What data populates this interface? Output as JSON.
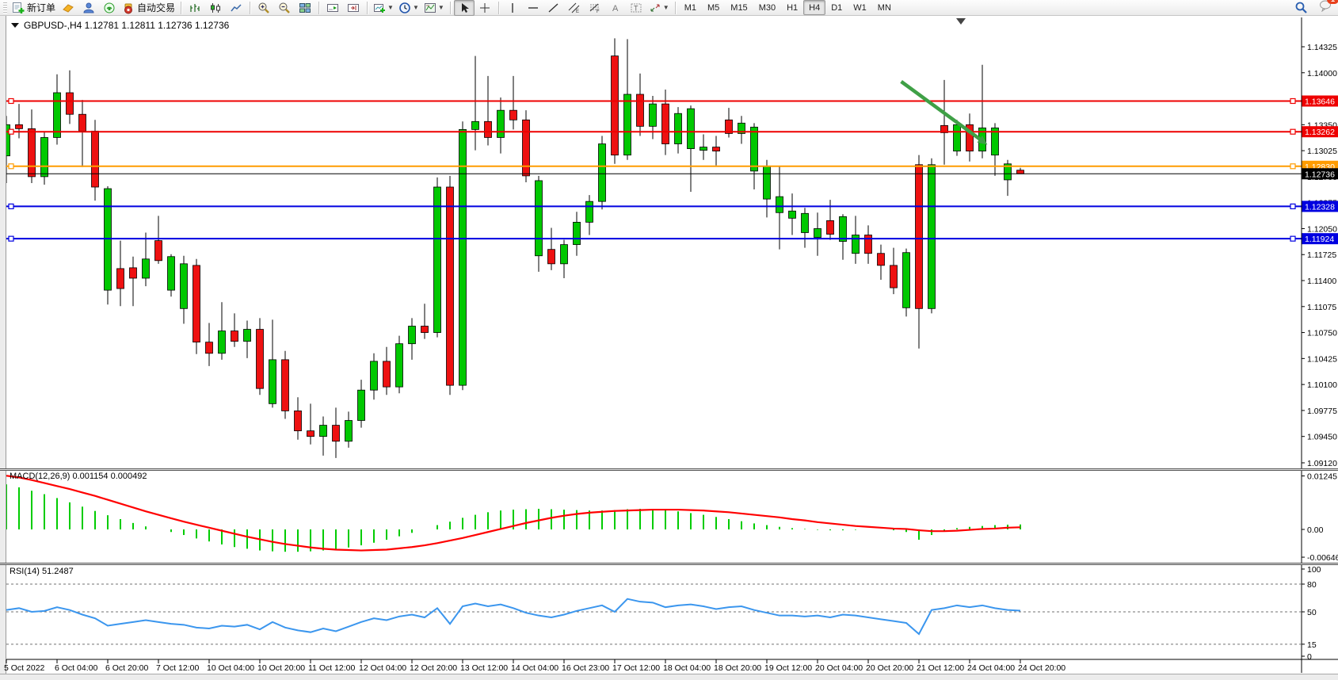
{
  "app": {
    "toolbar": {
      "new_order_label": "新订单",
      "autotrading_label": "自动交易",
      "timeframes": [
        "M1",
        "M5",
        "M15",
        "M30",
        "H1",
        "H4",
        "D1",
        "W1",
        "MN"
      ],
      "active_timeframe": "H4",
      "notifications_badge": "1"
    },
    "status_bar_text": ""
  },
  "chart": {
    "title": {
      "symbol": "GBPUSD-,H4",
      "open": "1.12781",
      "high": "1.12811",
      "low": "1.12736",
      "close": "1.12736"
    },
    "indicator_labels": {
      "macd": "MACD(12,26,9) 0.001154 0.000492",
      "rsi": "RSI(14) 51.2487"
    }
  },
  "chart_data": {
    "type": "candlestick",
    "symbol": "GBPUSD-",
    "timeframe": "H4",
    "style": {
      "bull_color": "#00c800",
      "bear_color": "#ee1111",
      "wick_color": "#000000",
      "macd_hist_color": "#00cc00",
      "macd_signal_color": "#ff0000",
      "rsi_line_color": "#3b96ee"
    },
    "x_labels": [
      "5 Oct 2022",
      "6 Oct 04:00",
      "6 Oct 20:00",
      "7 Oct 12:00",
      "10 Oct 04:00",
      "10 Oct 20:00",
      "11 Oct 12:00",
      "12 Oct 04:00",
      "12 Oct 20:00",
      "13 Oct 12:00",
      "14 Oct 04:00",
      "16 Oct 23:00",
      "17 Oct 12:00",
      "18 Oct 04:00",
      "18 Oct 20:00",
      "19 Oct 12:00",
      "20 Oct 04:00",
      "20 Oct 20:00",
      "21 Oct 12:00",
      "24 Oct 04:00",
      "24 Oct 20:00"
    ],
    "label_every_n_candles": 4,
    "price_axis_ticks": [
      1.14325,
      1.14,
      1.13675,
      1.1335,
      1.13025,
      1.127,
      1.12375,
      1.1205,
      1.11725,
      1.114,
      1.11075,
      1.1075,
      1.10425,
      1.101,
      1.09775,
      1.0945,
      1.0912
    ],
    "hlines": [
      {
        "price": 1.13646,
        "color": "#ee0000",
        "width": 2,
        "markers": true
      },
      {
        "price": 1.13262,
        "color": "#ee0000",
        "width": 2,
        "markers": true
      },
      {
        "price": 1.1283,
        "color": "#ff9c00",
        "width": 2,
        "markers": true
      },
      {
        "price": 1.12736,
        "color": "#000000",
        "width": 1,
        "markers": false
      },
      {
        "price": 1.12328,
        "color": "#0000e0",
        "width": 2,
        "markers": true
      },
      {
        "price": 1.11924,
        "color": "#0000e0",
        "width": 2,
        "markers": true
      }
    ],
    "price_tags": [
      {
        "price": 1.13646,
        "bg": "#ee0000"
      },
      {
        "price": 1.13262,
        "bg": "#ee0000"
      },
      {
        "price": 1.1283,
        "bg": "#ff9c00"
      },
      {
        "price": 1.12736,
        "bg": "#000000"
      },
      {
        "price": 1.12328,
        "bg": "#0000e0"
      },
      {
        "price": 1.11924,
        "bg": "#0000e0"
      }
    ],
    "current_price": "1.12736",
    "candles": [
      [
        1.1296,
        1.1346,
        1.1262,
        1.1335
      ],
      [
        1.1335,
        1.1361,
        1.1318,
        1.133
      ],
      [
        1.133,
        1.1354,
        1.1262,
        1.127
      ],
      [
        1.127,
        1.1326,
        1.126,
        1.1319
      ],
      [
        1.1319,
        1.1398,
        1.131,
        1.1375
      ],
      [
        1.1375,
        1.1403,
        1.1336,
        1.1348
      ],
      [
        1.1348,
        1.1366,
        1.1282,
        1.1327
      ],
      [
        1.1327,
        1.1341,
        1.124,
        1.1257
      ],
      [
        1.1128,
        1.1258,
        1.111,
        1.1255
      ],
      [
        1.1155,
        1.119,
        1.1108,
        1.113
      ],
      [
        1.1156,
        1.117,
        1.1108,
        1.1143
      ],
      [
        1.1143,
        1.12,
        1.1133,
        1.1167
      ],
      [
        1.119,
        1.1221,
        1.1161,
        1.1165
      ],
      [
        1.1128,
        1.1173,
        1.112,
        1.117
      ],
      [
        1.1105,
        1.1171,
        1.1086,
        1.1161
      ],
      [
        1.1159,
        1.1167,
        1.1048,
        1.1063
      ],
      [
        1.1063,
        1.1087,
        1.1033,
        1.1049
      ],
      [
        1.1049,
        1.1113,
        1.1041,
        1.1077
      ],
      [
        1.1077,
        1.1099,
        1.1057,
        1.1064
      ],
      [
        1.1064,
        1.109,
        1.1043,
        1.1079
      ],
      [
        1.1079,
        1.1093,
        1.0997,
        1.1005
      ],
      [
        1.0986,
        1.1091,
        1.0981,
        1.1041
      ],
      [
        1.1041,
        1.1052,
        1.0967,
        1.0977
      ],
      [
        1.0977,
        1.0994,
        1.0941,
        1.0952
      ],
      [
        1.0952,
        1.0986,
        1.0935,
        1.0945
      ],
      [
        1.0945,
        1.097,
        1.0921,
        1.0959
      ],
      [
        1.0959,
        1.0981,
        1.0918,
        1.0939
      ],
      [
        1.0939,
        1.0976,
        1.0931,
        1.0965
      ],
      [
        1.0965,
        1.1016,
        1.0956,
        1.1003
      ],
      [
        1.1003,
        1.1049,
        1.0991,
        1.1039
      ],
      [
        1.1039,
        1.1057,
        1.0997,
        1.1007
      ],
      [
        1.1007,
        1.1071,
        1.0999,
        1.1061
      ],
      [
        1.1061,
        1.1093,
        1.1041,
        1.1083
      ],
      [
        1.1083,
        1.1111,
        1.1067,
        1.1075
      ],
      [
        1.1075,
        1.1269,
        1.1069,
        1.1257
      ],
      [
        1.1257,
        1.1271,
        1.0997,
        1.1009
      ],
      [
        1.1009,
        1.1339,
        1.1003,
        1.1329
      ],
      [
        1.1329,
        1.1421,
        1.1303,
        1.1339
      ],
      [
        1.1339,
        1.1396,
        1.1309,
        1.1319
      ],
      [
        1.1319,
        1.1369,
        1.1299,
        1.1353
      ],
      [
        1.1353,
        1.1396,
        1.1329,
        1.1341
      ],
      [
        1.1341,
        1.1353,
        1.1263,
        1.1271
      ],
      [
        1.1171,
        1.1271,
        1.1151,
        1.1265
      ],
      [
        1.1179,
        1.1206,
        1.1153,
        1.1161
      ],
      [
        1.1161,
        1.1191,
        1.1143,
        1.1185
      ],
      [
        1.1185,
        1.1226,
        1.1171,
        1.1213
      ],
      [
        1.1213,
        1.1247,
        1.1197,
        1.1239
      ],
      [
        1.1239,
        1.1321,
        1.1229,
        1.1311
      ],
      [
        1.1421,
        1.1443,
        1.1286,
        1.1297
      ],
      [
        1.1297,
        1.1442,
        1.1291,
        1.1373
      ],
      [
        1.1373,
        1.1399,
        1.1321,
        1.1333
      ],
      [
        1.1333,
        1.1371,
        1.1317,
        1.1361
      ],
      [
        1.1361,
        1.1379,
        1.1297,
        1.1311
      ],
      [
        1.1311,
        1.1357,
        1.1299,
        1.1349
      ],
      [
        1.1305,
        1.1359,
        1.1251,
        1.1355
      ],
      [
        1.1303,
        1.1323,
        1.1291,
        1.1307
      ],
      [
        1.1307,
        1.1321,
        1.1284,
        1.1302
      ],
      [
        1.1341,
        1.1356,
        1.1319,
        1.1324
      ],
      [
        1.1324,
        1.1346,
        1.1311,
        1.1337
      ],
      [
        1.1277,
        1.1337,
        1.1254,
        1.1332
      ],
      [
        1.1242,
        1.1291,
        1.1219,
        1.1283
      ],
      [
        1.1225,
        1.1283,
        1.1179,
        1.1245
      ],
      [
        1.1218,
        1.1249,
        1.1197,
        1.1227
      ],
      [
        1.12,
        1.1231,
        1.1181,
        1.1224
      ],
      [
        1.1194,
        1.1225,
        1.1171,
        1.1205
      ],
      [
        1.1215,
        1.1241,
        1.1191,
        1.1198
      ],
      [
        1.1189,
        1.1223,
        1.1166,
        1.122
      ],
      [
        1.1174,
        1.1221,
        1.1161,
        1.1197
      ],
      [
        1.1197,
        1.1209,
        1.1161,
        1.1174
      ],
      [
        1.1174,
        1.1185,
        1.1141,
        1.1159
      ],
      [
        1.1159,
        1.1181,
        1.1123,
        1.1131
      ],
      [
        1.1106,
        1.118,
        1.1095,
        1.1175
      ],
      [
        1.1285,
        1.1297,
        1.1055,
        1.1105
      ],
      [
        1.1105,
        1.1293,
        1.1099,
        1.1285
      ],
      [
        1.1334,
        1.1391,
        1.1285,
        1.1325
      ],
      [
        1.1302,
        1.1341,
        1.1296,
        1.1335
      ],
      [
        1.1335,
        1.1349,
        1.1289,
        1.1302
      ],
      [
        1.1302,
        1.141,
        1.1293,
        1.1331
      ],
      [
        1.1297,
        1.1337,
        1.1271,
        1.1331
      ],
      [
        1.1266,
        1.1291,
        1.1246,
        1.1286
      ],
      [
        1.12781,
        1.12811,
        1.12736,
        1.12736
      ]
    ],
    "macd": {
      "label": "MACD(12,26,9)",
      "current_value": "0.001154",
      "current_signal": "0.000492",
      "axis_ticks": [
        {
          "v": 0.01245,
          "label": "0.01245"
        },
        {
          "v": 0,
          "label": "0.00"
        },
        {
          "v": -0.006465,
          "label": "-0.006465"
        }
      ],
      "histogram": [
        0.0105,
        0.0098,
        0.009,
        0.0082,
        0.0073,
        0.0063,
        0.0053,
        0.0043,
        0.0033,
        0.0024,
        0.0015,
        0.0007,
        0.0,
        -0.0006,
        -0.0013,
        -0.0021,
        -0.0028,
        -0.0035,
        -0.0041,
        -0.0045,
        -0.0049,
        -0.0051,
        -0.0052,
        -0.0052,
        -0.0051,
        -0.0049,
        -0.0046,
        -0.0042,
        -0.0037,
        -0.0031,
        -0.0024,
        -0.0016,
        -0.0008,
        0.0,
        0.001,
        0.0018,
        0.0027,
        0.0034,
        0.004,
        0.0044,
        0.0046,
        0.0047,
        0.0048,
        0.0047,
        0.0046,
        0.0045,
        0.0044,
        0.0044,
        0.0045,
        0.0047,
        0.0048,
        0.0047,
        0.0045,
        0.0042,
        0.0038,
        0.0034,
        0.0029,
        0.0024,
        0.0019,
        0.0014,
        0.001,
        0.0006,
        0.0003,
        0.0001,
        -0.0001,
        -0.0002,
        -0.0002,
        -0.0001,
        0.0,
        0.0,
        -0.0002,
        -0.0006,
        -0.0024,
        -0.0013,
        -0.0003,
        0.0003,
        0.0006,
        0.0008,
        0.001,
        0.0011,
        0.001154
      ],
      "signal": [
        0.0125,
        0.0121,
        0.0115,
        0.0108,
        0.0101,
        0.0094,
        0.0086,
        0.0078,
        0.0069,
        0.006,
        0.0051,
        0.0042,
        0.0034,
        0.0026,
        0.0018,
        0.0011,
        0.0004,
        -0.0003,
        -0.001,
        -0.0017,
        -0.0023,
        -0.0029,
        -0.0034,
        -0.0038,
        -0.0042,
        -0.0045,
        -0.0047,
        -0.0048,
        -0.0049,
        -0.0048,
        -0.0047,
        -0.0044,
        -0.0041,
        -0.0037,
        -0.0032,
        -0.0026,
        -0.002,
        -0.0013,
        -0.0006,
        0.0001,
        0.0008,
        0.0015,
        0.0021,
        0.0027,
        0.0032,
        0.0036,
        0.0039,
        0.0041,
        0.0043,
        0.0044,
        0.0045,
        0.0046,
        0.0046,
        0.0046,
        0.0045,
        0.0044,
        0.0042,
        0.004,
        0.0037,
        0.0034,
        0.0031,
        0.0028,
        0.0024,
        0.0021,
        0.0017,
        0.0014,
        0.0011,
        0.0008,
        0.0006,
        0.0004,
        0.0002,
        0.0001,
        -0.0002,
        -0.0004,
        -0.0004,
        -0.0003,
        -0.0001,
        0.0001,
        0.0002,
        0.0004,
        0.000492
      ]
    },
    "rsi": {
      "label": "RSI(14)",
      "current_value": "51.2487",
      "axis_ticks": [
        {
          "v": 100,
          "label": "100"
        },
        {
          "v": 80,
          "label": "80"
        },
        {
          "v": 50,
          "label": "50"
        },
        {
          "v": 15,
          "label": "15"
        },
        {
          "v": 0,
          "label": "0"
        }
      ],
      "dashed_levels": [
        80,
        50,
        15
      ],
      "values": [
        52,
        54,
        50,
        51,
        55,
        52,
        47,
        43,
        35,
        37,
        39,
        41,
        39,
        37,
        36,
        33,
        32,
        35,
        34,
        36,
        31,
        39,
        33,
        30,
        28,
        32,
        29,
        34,
        39,
        43,
        41,
        45,
        47,
        44,
        54,
        37,
        56,
        59,
        56,
        58,
        54,
        49,
        46,
        44,
        47,
        51,
        54,
        57,
        50,
        64,
        61,
        60,
        55,
        57,
        58,
        56,
        53,
        55,
        56,
        52,
        49,
        46,
        46,
        45,
        46,
        44,
        47,
        46,
        44,
        42,
        40,
        38,
        26,
        52,
        54,
        57,
        55,
        57,
        54,
        52,
        51.2487
      ]
    },
    "arrow_annotation": {
      "from_bar": 70.6,
      "from_price": 1.1389,
      "to_bar": 77.4,
      "to_price": 1.131,
      "color": "#3fa046"
    }
  }
}
